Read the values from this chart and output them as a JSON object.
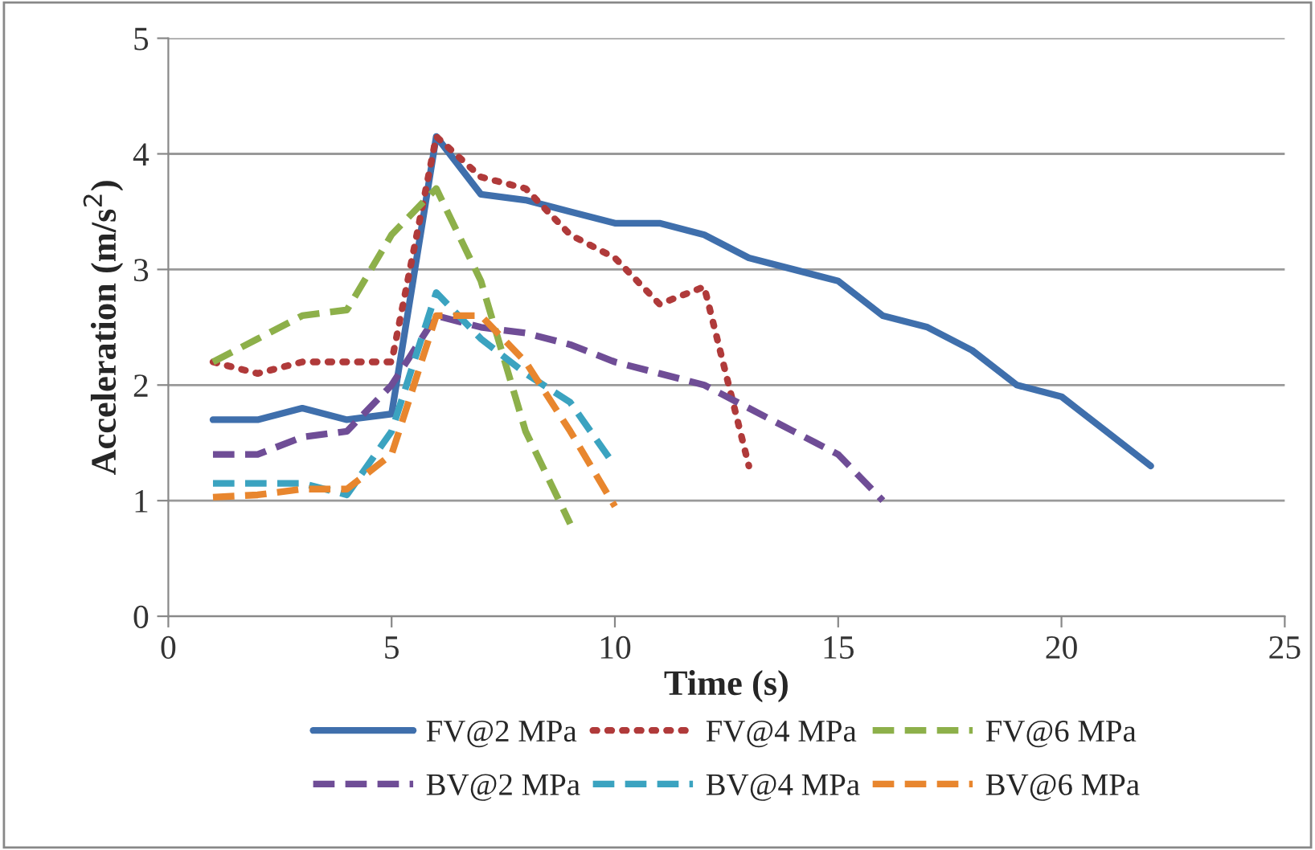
{
  "chart_data": {
    "type": "line",
    "xlabel": "Time (s)",
    "ylabel": "Acceleration (m/s$^{2}$)",
    "xlim": [
      0,
      25
    ],
    "xticks": [
      0,
      5,
      10,
      15,
      20,
      25
    ],
    "ylim": [
      0,
      5
    ],
    "yticks": [
      0,
      1,
      2,
      3,
      4,
      5
    ],
    "grid": "y",
    "legend": "bottom",
    "marker": "none",
    "series": [
      {
        "name": "FV@2 MPa",
        "color": "#3f6fac",
        "line_style": "solid",
        "x": [
          1,
          2,
          3,
          4,
          5,
          6,
          7,
          8,
          9,
          10,
          11,
          12,
          13,
          14,
          15,
          16,
          17,
          18,
          19,
          20,
          21,
          22
        ],
        "values": [
          1.7,
          1.7,
          1.8,
          1.7,
          1.75,
          4.15,
          3.65,
          3.6,
          3.5,
          3.4,
          3.4,
          3.3,
          3.1,
          3.0,
          2.9,
          2.6,
          2.5,
          2.3,
          2.0,
          1.9,
          1.6,
          1.3
        ]
      },
      {
        "name": "FV@4 MPa",
        "color": "#b03a3a",
        "line_style": "dotted",
        "x": [
          1,
          2,
          3,
          4,
          5,
          6,
          7,
          8,
          9,
          10,
          11,
          12,
          13
        ],
        "values": [
          2.2,
          2.1,
          2.2,
          2.2,
          2.2,
          4.15,
          3.8,
          3.7,
          3.3,
          3.1,
          2.7,
          2.85,
          1.3
        ]
      },
      {
        "name": "FV@6 MPa",
        "color": "#8db04a",
        "line_style": "dashed",
        "x": [
          1,
          2,
          3,
          4,
          5,
          6,
          7,
          8,
          9
        ],
        "values": [
          2.2,
          2.4,
          2.6,
          2.65,
          3.3,
          3.7,
          2.9,
          1.6,
          0.8
        ]
      },
      {
        "name": "BV@2 MPa",
        "color": "#6f4d96",
        "line_style": "dashed",
        "x": [
          1,
          2,
          3,
          4,
          5,
          6,
          7,
          8,
          9,
          10,
          11,
          12,
          13,
          14,
          15,
          16
        ],
        "values": [
          1.4,
          1.4,
          1.55,
          1.6,
          2.0,
          2.6,
          2.5,
          2.45,
          2.35,
          2.2,
          2.1,
          2.0,
          1.8,
          1.6,
          1.4,
          1.0
        ]
      },
      {
        "name": "BV@4 MPa",
        "color": "#3ba3c0",
        "line_style": "dashed",
        "x": [
          1,
          2,
          3,
          4,
          5,
          6,
          7,
          8,
          9,
          10
        ],
        "values": [
          1.15,
          1.15,
          1.15,
          1.05,
          1.6,
          2.8,
          2.4,
          2.1,
          1.85,
          1.3
        ]
      },
      {
        "name": "BV@6 MPa",
        "color": "#e8862e",
        "line_style": "dashed",
        "x": [
          1,
          2,
          3,
          4,
          5,
          6,
          7,
          8,
          9,
          10
        ],
        "values": [
          1.03,
          1.05,
          1.1,
          1.1,
          1.4,
          2.6,
          2.6,
          2.2,
          1.6,
          0.95
        ]
      }
    ]
  }
}
